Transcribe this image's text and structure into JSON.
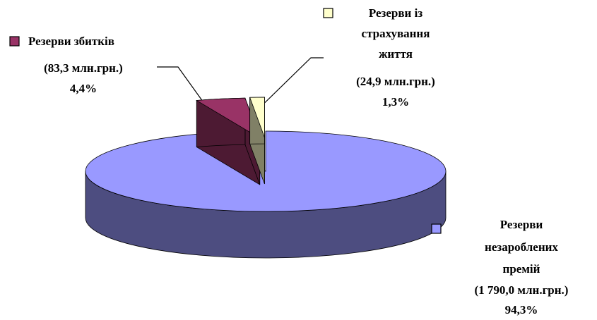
{
  "chart_data": {
    "type": "pie",
    "categories": [
      [
        "Резерви незароблених",
        "премій"
      ],
      [
        "Резерви збитків"
      ],
      [
        "Резерви із",
        "страхування",
        "життя"
      ]
    ],
    "amount_labels": [
      "(1 790,0 млн.грн.)",
      "(83,3 млн.грн.)",
      "(24,9 млн.грн.)"
    ],
    "values": [
      94.3,
      4.4,
      1.3
    ],
    "value_labels": [
      "94,3%",
      "4,4%",
      "1,3%"
    ],
    "colors": [
      "#9999ff",
      "#993366",
      "#ffffcc"
    ]
  }
}
